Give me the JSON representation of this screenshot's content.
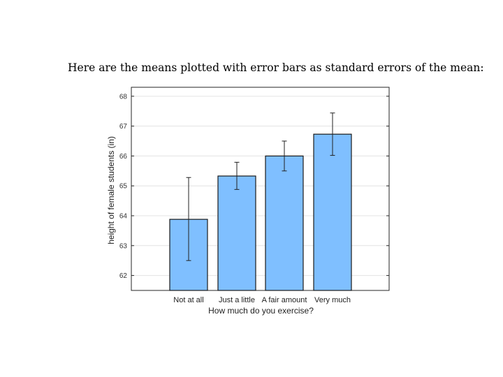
{
  "caption": "Here are the means plotted with error bars as standard errors of the mean:",
  "chart_data": {
    "type": "bar",
    "categories": [
      "Not at all",
      "Just a little",
      "A fair amount",
      "Very much"
    ],
    "values": [
      63.88,
      65.33,
      66.0,
      66.73
    ],
    "error_bars": [
      {
        "low": 62.5,
        "high": 65.28
      },
      {
        "low": 64.88,
        "high": 65.79
      },
      {
        "low": 65.5,
        "high": 66.5
      },
      {
        "low": 66.02,
        "high": 67.44
      }
    ],
    "xlabel": "How much do you exercise?",
    "ylabel": "height of female students (in)",
    "ylim": [
      61.5,
      68.3
    ],
    "yticks": [
      62,
      63,
      64,
      65,
      66,
      67,
      68
    ],
    "grid": true,
    "colors": {
      "bar_fill": "#7fbfff",
      "bar_stroke": "#1a1a1a",
      "grid": "#e3e3e3",
      "axis": "#262626"
    }
  }
}
